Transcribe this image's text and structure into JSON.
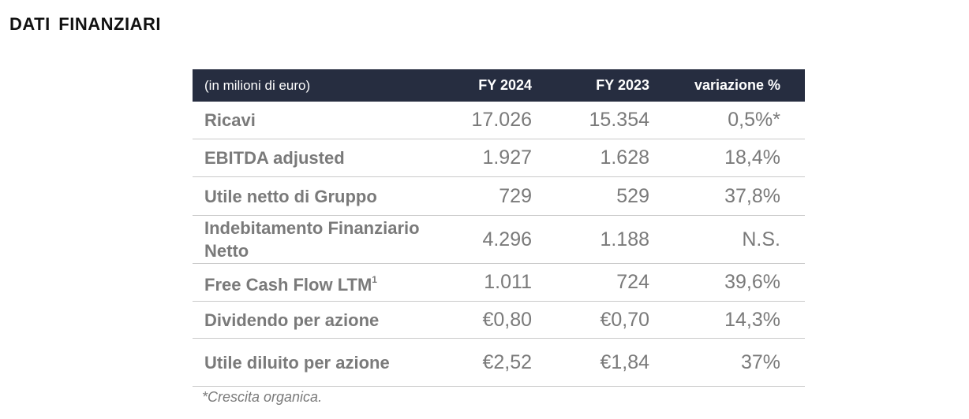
{
  "page": {
    "title": "DATI  FINANZIARI"
  },
  "table": {
    "header": {
      "label": "(in milioni di euro)",
      "col_2024": "FY 2024",
      "col_2023": "FY 2023",
      "col_var": "variazione %"
    },
    "rows": [
      {
        "label": "Ricavi",
        "fy2024": "17.026",
        "fy2023": "15.354",
        "variation": "0,5%*"
      },
      {
        "label": "EBITDA adjusted",
        "fy2024": "1.927",
        "fy2023": "1.628",
        "variation": "18,4%"
      },
      {
        "label": "Utile netto di Gruppo",
        "fy2024": "729",
        "fy2023": "529",
        "variation": "37,8%"
      },
      {
        "label": "Indebitamento Finanziario Netto",
        "fy2024": "4.296",
        "fy2023": "1.188",
        "variation": "N.S."
      },
      {
        "label": "Free Cash Flow LTM",
        "label_sup": "1",
        "fy2024": "1.011",
        "fy2023": "724",
        "variation": "39,6%"
      },
      {
        "label": "Dividendo per azione",
        "fy2024": "€0,80",
        "fy2023": "€0,70",
        "variation": "14,3%"
      },
      {
        "label": "Utile diluito per azione",
        "fy2024": "€2,52",
        "fy2023": "€1,84",
        "variation": "37%"
      }
    ]
  },
  "footnote": "*Crescita organica."
}
